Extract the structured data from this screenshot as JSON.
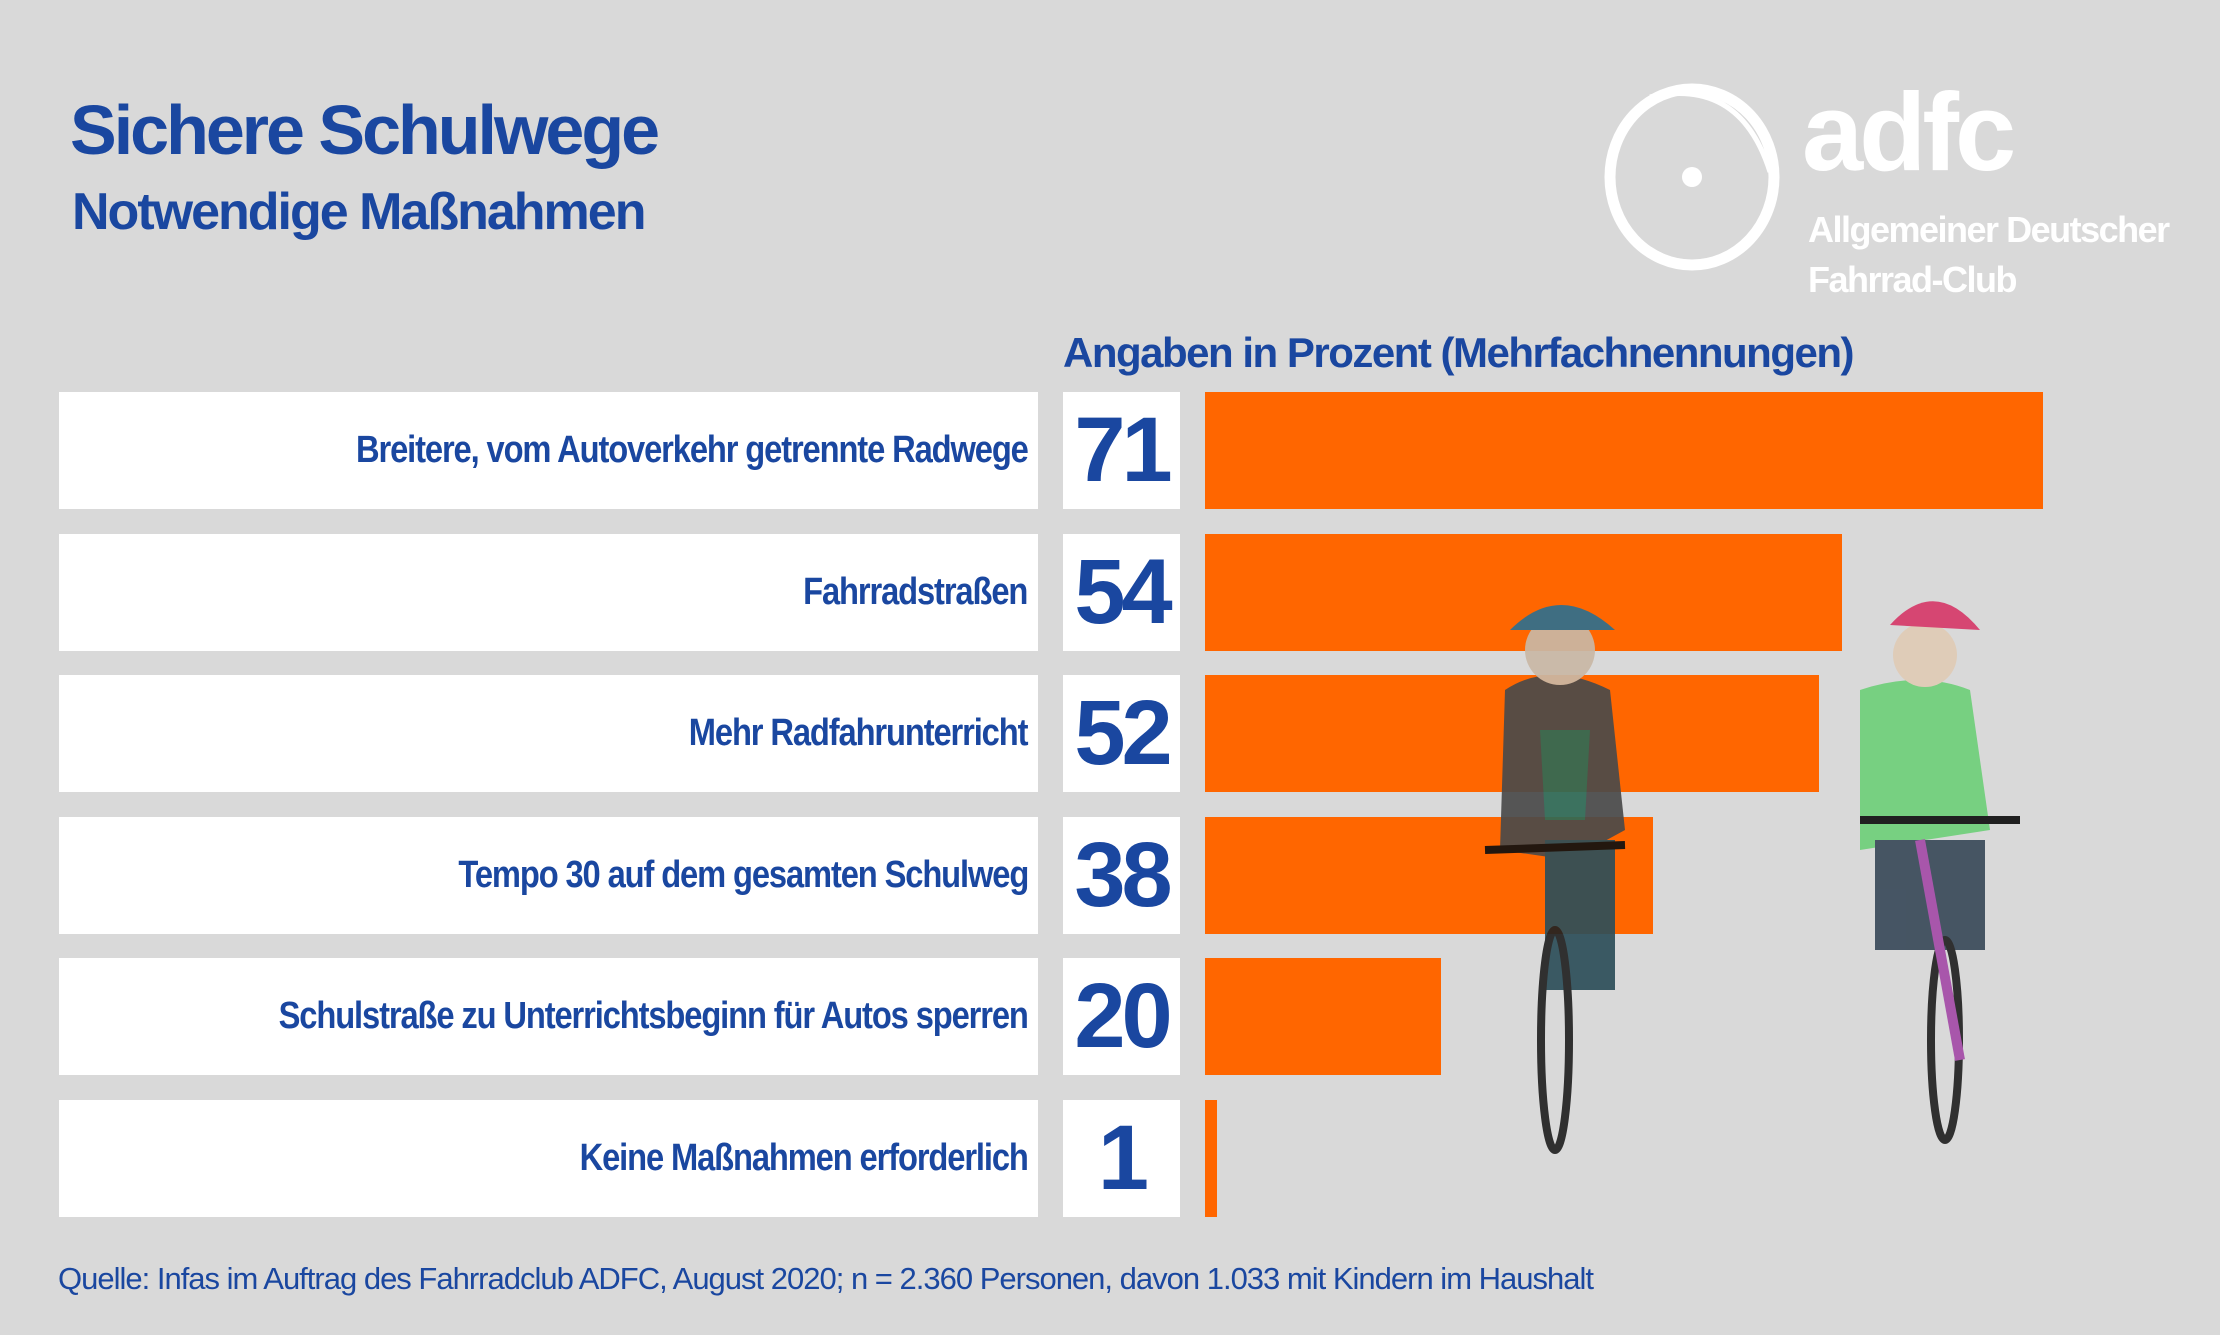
{
  "title": "Sichere Schulwege",
  "subtitle": "Notwendige Maßnahmen",
  "logo": {
    "wordmark": "adfc",
    "line1": "Allgemeiner Deutscher",
    "line2": "Fahrrad-Club"
  },
  "colors": {
    "background": "#d9d9d9",
    "text": "#1a47a0",
    "bar": "#ff6600"
  },
  "chart_data": {
    "type": "bar",
    "orientation": "horizontal",
    "unit_label": "Angaben in Prozent (Mehrfachnennungen)",
    "categories": [
      "Breitere, vom Autoverkehr getrennte Radwege",
      "Fahrradstraßen",
      "Mehr Radfahrunterricht",
      "Tempo 30 auf dem gesamten Schulweg",
      "Schulstraße zu Unterrichtsbeginn für Autos sperren",
      "Keine Maßnahmen erforderlich"
    ],
    "values": [
      71,
      54,
      52,
      38,
      20,
      1
    ],
    "value_labels": [
      "71",
      "54",
      "52",
      "38",
      "20",
      "1"
    ]
  },
  "source": "Quelle: Infas im Auftrag des Fahrradclub ADFC, August 2020; n = 2.360 Personen, davon 1.033 mit Kindern im Haushalt"
}
